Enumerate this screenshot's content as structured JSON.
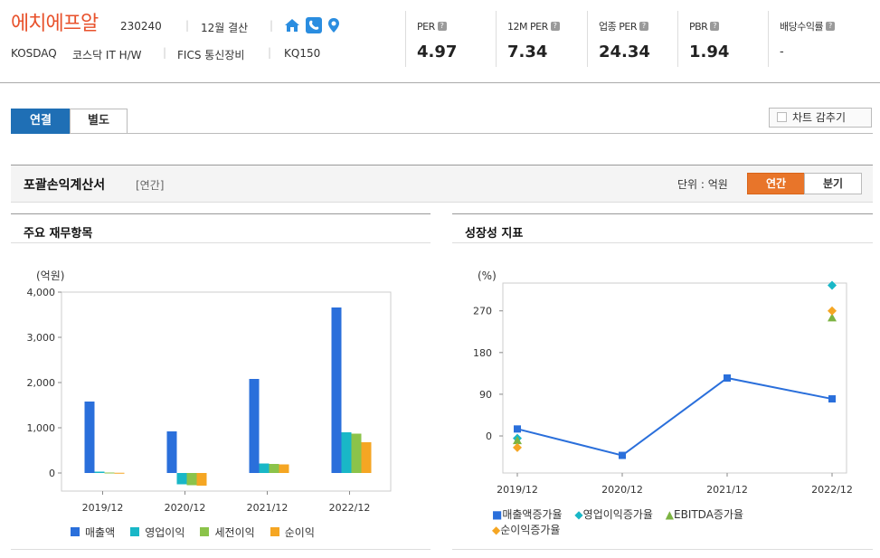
{
  "header": {
    "company_name": "에치에프알",
    "code": "230240",
    "fiscal": "12월 결산",
    "market": "KOSDAQ",
    "sector": "코스닥 IT H/W",
    "fics": "FICS 통신장비",
    "index": "KQ150"
  },
  "kpis": [
    {
      "label": "PER",
      "value": "4.97"
    },
    {
      "label": "12M PER",
      "value": "7.34"
    },
    {
      "label": "업종 PER",
      "value": "24.34"
    },
    {
      "label": "PBR",
      "value": "1.94"
    },
    {
      "label": "배당수익률",
      "value": "-"
    }
  ],
  "tabs": {
    "consolidated": "연결",
    "separate": "별도"
  },
  "hide_chart_label": "차트 감추기",
  "section": {
    "title": "포괄손익계산서",
    "period_tag": "[연간]",
    "unit_label": "단위 : 억원",
    "annual_btn": "연간",
    "quarter_btn": "분기"
  },
  "colors": {
    "accent_orange": "#e8752a",
    "tab_blue": "#1f6fb5",
    "revenue": "#2a6fdb",
    "op_income": "#19b7c7",
    "pretax": "#8bc34a",
    "net": "#f5a623",
    "ebitda": "#7cb342"
  },
  "chart_data": [
    {
      "type": "bar",
      "title": "주요 재무항목",
      "ylabel": "(억원)",
      "categories": [
        "2019/12",
        "2020/12",
        "2021/12",
        "2022/12"
      ],
      "ylim": [
        -400,
        4000
      ],
      "yticks": [
        0,
        1000,
        2000,
        3000,
        4000
      ],
      "ytick_labels": [
        "0",
        "1,000",
        "2,000",
        "3,000",
        "4,000"
      ],
      "series": [
        {
          "name": "매출액",
          "values": [
            1580,
            920,
            2080,
            3660
          ]
        },
        {
          "name": "영업이익",
          "values": [
            30,
            -250,
            210,
            900
          ]
        },
        {
          "name": "세전이익",
          "values": [
            10,
            -270,
            200,
            870
          ]
        },
        {
          "name": "순이익",
          "values": [
            5,
            -280,
            190,
            680
          ]
        }
      ]
    },
    {
      "type": "line",
      "title": "성장성 지표",
      "ylabel": "(%)",
      "categories": [
        "2019/12",
        "2020/12",
        "2021/12",
        "2022/12"
      ],
      "ylim": [
        -80,
        330
      ],
      "yticks": [
        0,
        90,
        180,
        270
      ],
      "ytick_labels": [
        "0",
        "90",
        "180",
        "270"
      ],
      "series": [
        {
          "name": "매출액증가율",
          "values": [
            15,
            -42,
            125,
            80
          ]
        },
        {
          "name": "영업이익증가율",
          "values": [
            -5,
            null,
            null,
            325
          ]
        },
        {
          "name": "EBITDA증가율",
          "values": [
            -10,
            null,
            null,
            255
          ]
        },
        {
          "name": "순이익증가율",
          "values": [
            -25,
            null,
            null,
            270
          ]
        }
      ]
    }
  ]
}
